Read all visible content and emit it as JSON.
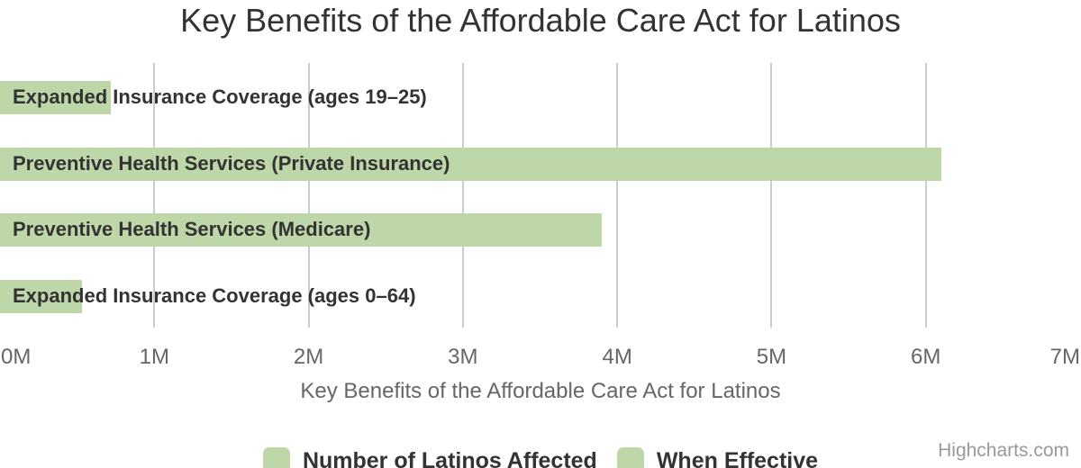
{
  "title": "Key Benefits of the Affordable Care Act for Latinos",
  "credit": "Highcharts.com",
  "colors": {
    "bar": "#bed7a8",
    "grid": "#cccccc",
    "title_text": "#333333",
    "category_label": "#333333",
    "axis_text": "#666666",
    "credit_text": "#999999"
  },
  "chart_data": {
    "type": "bar",
    "title": "Key Benefits of the Affordable Care Act for Latinos",
    "categories": [
      "Expanded Insurance Coverage (ages 19–25)",
      "Preventive Health Services (Private Insurance)",
      "Preventive Health Services (Medicare)",
      "Expanded Insurance Coverage (ages 0–64)"
    ],
    "series": [
      {
        "name": "Number of Latinos Affected",
        "color": "#bed7a8",
        "values": [
          0.72,
          6.1,
          3.9,
          0.53
        ]
      },
      {
        "name": "When Effective",
        "color": "#bed7a8",
        "values": [
          0,
          0,
          0,
          0
        ]
      }
    ],
    "unit": "millions",
    "xlabel": "Key Benefits of the Affordable Care Act for Latinos",
    "xlim": [
      0,
      7
    ],
    "xticks": [
      "0M",
      "1M",
      "2M",
      "3M",
      "4M",
      "5M",
      "6M",
      "7M"
    ],
    "grid": true,
    "legend_position": "bottom"
  }
}
